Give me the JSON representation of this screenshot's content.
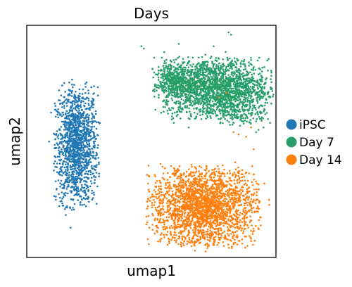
{
  "chart_data": {
    "type": "scatter",
    "title": "Days",
    "xlabel": "umap1",
    "ylabel": "umap2",
    "xlim": [
      0,
      10
    ],
    "ylim": [
      0,
      10
    ],
    "grid": false,
    "legend_placement": "right",
    "series": [
      {
        "name": "iPSC",
        "color": "#1f77b4",
        "clusters": [
          {
            "cx": 2.0,
            "cy": 4.8,
            "sx": 0.42,
            "sy": 1.25,
            "n": 1400
          }
        ],
        "points": [
          [
            1.3,
            4.2
          ],
          [
            1.5,
            5.5
          ],
          [
            1.6,
            3.9
          ],
          [
            1.4,
            4.9
          ],
          [
            2.5,
            5.4
          ]
        ]
      },
      {
        "name": "Day 7",
        "color": "#279e68",
        "clusters": [
          {
            "cx": 7.6,
            "cy": 7.3,
            "sx": 1.05,
            "sy": 0.62,
            "n": 1900
          },
          {
            "cx": 6.0,
            "cy": 7.6,
            "sx": 0.45,
            "sy": 0.38,
            "n": 380
          },
          {
            "cx": 8.6,
            "cy": 6.2,
            "sx": 0.55,
            "sy": 0.25,
            "n": 140
          }
        ],
        "points": [
          [
            4.6,
            9.1
          ],
          [
            4.7,
            9.0
          ],
          [
            6.1,
            9.2
          ],
          [
            7.5,
            9.1
          ],
          [
            8.1,
            9.7
          ],
          [
            8.2,
            9.6
          ],
          [
            9.2,
            5.4
          ],
          [
            9.5,
            5.6
          ],
          [
            9.3,
            5.5
          ],
          [
            5.9,
            5.8
          ],
          [
            6.5,
            5.6
          ]
        ]
      },
      {
        "name": "Day 14",
        "color": "#ff7f0e",
        "clusters": [
          {
            "cx": 7.1,
            "cy": 2.2,
            "sx": 1.05,
            "sy": 0.82,
            "n": 2300
          }
        ],
        "points": [
          [
            6.3,
            0.9
          ],
          [
            6.6,
            0.7
          ],
          [
            7.5,
            0.6
          ],
          [
            8.0,
            0.8
          ],
          [
            6.2,
            1.4
          ],
          [
            8.5,
            5.3
          ],
          [
            8.8,
            5.2
          ],
          [
            7.7,
            6.9
          ],
          [
            8.0,
            7.1
          ],
          [
            9.0,
            5.6
          ],
          [
            8.3,
            5.4
          ]
        ]
      }
    ]
  }
}
